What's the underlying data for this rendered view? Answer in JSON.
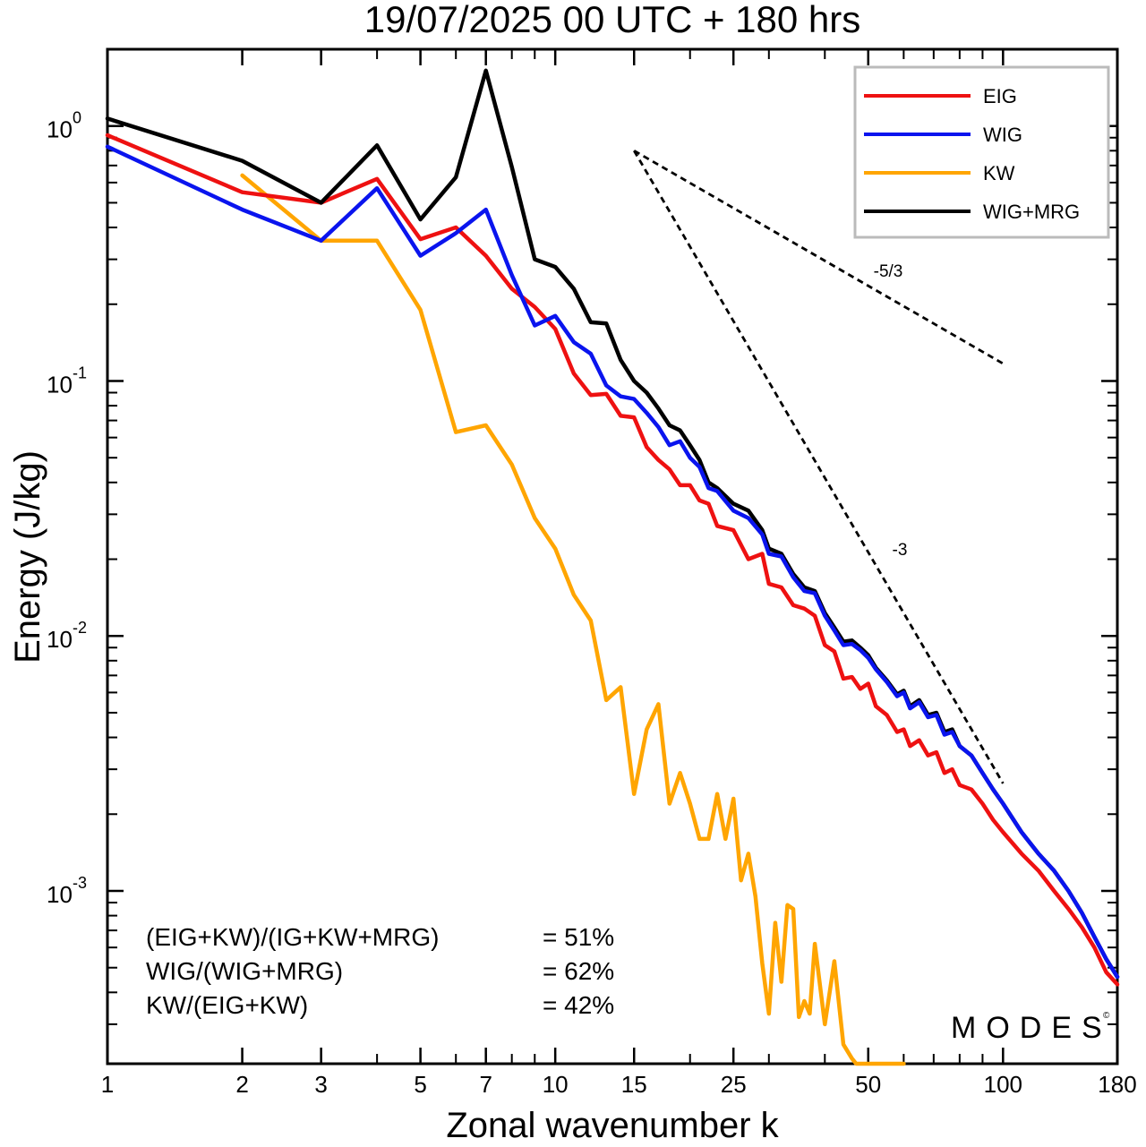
{
  "chart_data": {
    "type": "line",
    "title": "19/07/2025  00 UTC  + 180 hrs",
    "xlabel": "Zonal wavenumber k",
    "ylabel": "Energy (J/kg)",
    "xscale": "log",
    "yscale": "log",
    "xlim": [
      1,
      180
    ],
    "ylim": [
      0.00021,
      2.0
    ],
    "x_ticks": [
      1,
      2,
      3,
      5,
      7,
      10,
      15,
      25,
      50,
      100,
      180
    ],
    "x_tick_labels": [
      "1",
      "2",
      "3",
      "5",
      "7",
      "10",
      "15",
      "25",
      "50",
      "100",
      "180"
    ],
    "y_ticks": [
      {
        "value": 1,
        "base": "10",
        "exp": "0"
      },
      {
        "value": 0.1,
        "base": "10",
        "exp": "-1"
      },
      {
        "value": 0.01,
        "base": "10",
        "exp": "-2"
      },
      {
        "value": 0.001,
        "base": "10",
        "exp": "-3"
      }
    ],
    "legend_position": "top-right",
    "series": [
      {
        "name": "EIG",
        "color": "#ee1111",
        "points": [
          [
            1,
            0.92
          ],
          [
            2,
            0.55
          ],
          [
            3,
            0.5
          ],
          [
            4,
            0.62
          ],
          [
            5,
            0.36
          ],
          [
            6,
            0.4
          ],
          [
            7,
            0.31
          ],
          [
            8,
            0.23
          ],
          [
            9,
            0.195
          ],
          [
            10,
            0.16
          ],
          [
            11,
            0.107
          ],
          [
            12,
            0.088
          ],
          [
            13,
            0.089
          ],
          [
            14,
            0.073
          ],
          [
            15,
            0.072
          ],
          [
            16,
            0.055
          ],
          [
            17,
            0.049
          ],
          [
            18,
            0.045
          ],
          [
            19,
            0.039
          ],
          [
            20,
            0.039
          ],
          [
            21,
            0.034
          ],
          [
            22,
            0.033
          ],
          [
            23,
            0.027
          ],
          [
            25,
            0.026
          ],
          [
            27,
            0.02
          ],
          [
            29,
            0.021
          ],
          [
            30,
            0.016
          ],
          [
            32,
            0.0155
          ],
          [
            34,
            0.0132
          ],
          [
            36,
            0.0128
          ],
          [
            38,
            0.012
          ],
          [
            40,
            0.0092
          ],
          [
            42,
            0.0087
          ],
          [
            44,
            0.0068
          ],
          [
            46,
            0.0069
          ],
          [
            48,
            0.0062
          ],
          [
            50,
            0.0065
          ],
          [
            52,
            0.0053
          ],
          [
            55,
            0.0049
          ],
          [
            58,
            0.0042
          ],
          [
            60,
            0.0043
          ],
          [
            62,
            0.0037
          ],
          [
            65,
            0.0039
          ],
          [
            68,
            0.0034
          ],
          [
            71,
            0.0035
          ],
          [
            74,
            0.0029
          ],
          [
            77,
            0.003
          ],
          [
            80,
            0.0026
          ],
          [
            85,
            0.0025
          ],
          [
            90,
            0.0022
          ],
          [
            95,
            0.0019
          ],
          [
            100,
            0.0017
          ],
          [
            110,
            0.0014
          ],
          [
            120,
            0.0012
          ],
          [
            130,
            0.001
          ],
          [
            140,
            0.00085
          ],
          [
            150,
            0.00072
          ],
          [
            160,
            0.0006
          ],
          [
            170,
            0.00048
          ],
          [
            180,
            0.00043
          ]
        ]
      },
      {
        "name": "WIG",
        "color": "#0a14ee",
        "points": [
          [
            1,
            0.83
          ],
          [
            2,
            0.47
          ],
          [
            3,
            0.355
          ],
          [
            4,
            0.57
          ],
          [
            5,
            0.31
          ],
          [
            6,
            0.38
          ],
          [
            7,
            0.47
          ],
          [
            8,
            0.26
          ],
          [
            9,
            0.165
          ],
          [
            10,
            0.18
          ],
          [
            11,
            0.142
          ],
          [
            12,
            0.128
          ],
          [
            13,
            0.096
          ],
          [
            14,
            0.087
          ],
          [
            15,
            0.085
          ],
          [
            16,
            0.075
          ],
          [
            17,
            0.066
          ],
          [
            18,
            0.056
          ],
          [
            19,
            0.058
          ],
          [
            20,
            0.05
          ],
          [
            21,
            0.046
          ],
          [
            22,
            0.038
          ],
          [
            23,
            0.037
          ],
          [
            25,
            0.031
          ],
          [
            27,
            0.029
          ],
          [
            29,
            0.025
          ],
          [
            30,
            0.021
          ],
          [
            32,
            0.0205
          ],
          [
            34,
            0.017
          ],
          [
            36,
            0.015
          ],
          [
            38,
            0.0147
          ],
          [
            40,
            0.012
          ],
          [
            42,
            0.0105
          ],
          [
            44,
            0.0092
          ],
          [
            46,
            0.0093
          ],
          [
            48,
            0.0088
          ],
          [
            50,
            0.0082
          ],
          [
            52,
            0.0074
          ],
          [
            55,
            0.0066
          ],
          [
            58,
            0.0058
          ],
          [
            60,
            0.006
          ],
          [
            62,
            0.0052
          ],
          [
            65,
            0.0055
          ],
          [
            68,
            0.0048
          ],
          [
            71,
            0.0049
          ],
          [
            74,
            0.0041
          ],
          [
            77,
            0.0042
          ],
          [
            80,
            0.0037
          ],
          [
            85,
            0.0034
          ],
          [
            90,
            0.0029
          ],
          [
            95,
            0.0025
          ],
          [
            100,
            0.0022
          ],
          [
            110,
            0.0017
          ],
          [
            120,
            0.0014
          ],
          [
            130,
            0.0012
          ],
          [
            140,
            0.001
          ],
          [
            150,
            0.00082
          ],
          [
            160,
            0.00066
          ],
          [
            170,
            0.00054
          ],
          [
            180,
            0.00046
          ]
        ]
      },
      {
        "name": "KW",
        "color": "#ffa500",
        "points": [
          [
            2,
            0.64
          ],
          [
            3,
            0.355
          ],
          [
            4,
            0.355
          ],
          [
            5,
            0.19
          ],
          [
            6,
            0.063
          ],
          [
            7,
            0.067
          ],
          [
            8,
            0.047
          ],
          [
            9,
            0.029
          ],
          [
            10,
            0.022
          ],
          [
            11,
            0.0145
          ],
          [
            12,
            0.0115
          ],
          [
            13,
            0.0056
          ],
          [
            14,
            0.0063
          ],
          [
            15,
            0.0024
          ],
          [
            16,
            0.0043
          ],
          [
            17,
            0.0054
          ],
          [
            18,
            0.0022
          ],
          [
            19,
            0.0029
          ],
          [
            20,
            0.0022
          ],
          [
            21,
            0.0016
          ],
          [
            22,
            0.0016
          ],
          [
            23,
            0.0024
          ],
          [
            24,
            0.0016
          ],
          [
            25,
            0.0023
          ],
          [
            26,
            0.0011
          ],
          [
            27,
            0.0014
          ],
          [
            28,
            0.00095
          ],
          [
            29,
            0.00052
          ],
          [
            30,
            0.00033
          ],
          [
            31,
            0.00075
          ],
          [
            32,
            0.00044
          ],
          [
            33,
            0.00088
          ],
          [
            34,
            0.00085
          ],
          [
            35,
            0.00032
          ],
          [
            36,
            0.00037
          ],
          [
            37,
            0.00033
          ],
          [
            38,
            0.00062
          ],
          [
            40,
            0.0003
          ],
          [
            42,
            0.00053
          ],
          [
            44,
            0.00025
          ],
          [
            46,
            0.00022
          ],
          [
            47,
            0.00021
          ],
          [
            48,
            0.00021
          ],
          [
            50,
            0.00021
          ],
          [
            52,
            0.00021
          ],
          [
            55,
            0.00021
          ],
          [
            58,
            0.00021
          ],
          [
            60,
            0.00021
          ]
        ]
      },
      {
        "name": "WIG+MRG",
        "color": "#000000",
        "points": [
          [
            1,
            1.07
          ],
          [
            2,
            0.73
          ],
          [
            3,
            0.5
          ],
          [
            4,
            0.84
          ],
          [
            5,
            0.43
          ],
          [
            6,
            0.63
          ],
          [
            7,
            1.65
          ],
          [
            8,
            0.69
          ],
          [
            9,
            0.3
          ],
          [
            10,
            0.28
          ],
          [
            11,
            0.23
          ],
          [
            12,
            0.17
          ],
          [
            13,
            0.168
          ],
          [
            14,
            0.121
          ],
          [
            15,
            0.1
          ],
          [
            16,
            0.09
          ],
          [
            17,
            0.078
          ],
          [
            18,
            0.067
          ],
          [
            19,
            0.064
          ],
          [
            20,
            0.056
          ],
          [
            21,
            0.049
          ],
          [
            22,
            0.04
          ],
          [
            23,
            0.038
          ],
          [
            25,
            0.033
          ],
          [
            27,
            0.031
          ],
          [
            29,
            0.026
          ],
          [
            30,
            0.022
          ],
          [
            32,
            0.021
          ],
          [
            34,
            0.0175
          ],
          [
            36,
            0.0155
          ],
          [
            38,
            0.015
          ],
          [
            40,
            0.0123
          ],
          [
            42,
            0.0108
          ],
          [
            44,
            0.0095
          ],
          [
            46,
            0.0096
          ],
          [
            48,
            0.009
          ],
          [
            50,
            0.0084
          ],
          [
            52,
            0.0075
          ],
          [
            55,
            0.0067
          ],
          [
            58,
            0.0059
          ],
          [
            60,
            0.0061
          ],
          [
            62,
            0.0053
          ],
          [
            65,
            0.0056
          ],
          [
            68,
            0.0049
          ],
          [
            71,
            0.005
          ],
          [
            74,
            0.0042
          ],
          [
            77,
            0.0043
          ],
          [
            80,
            0.0037
          ],
          [
            85,
            0.0034
          ],
          [
            90,
            0.0029
          ],
          [
            95,
            0.0025
          ],
          [
            100,
            0.0022
          ],
          [
            110,
            0.0017
          ],
          [
            120,
            0.0014
          ],
          [
            130,
            0.0012
          ],
          [
            140,
            0.001
          ],
          [
            150,
            0.00082
          ],
          [
            160,
            0.00066
          ],
          [
            170,
            0.00054
          ],
          [
            180,
            0.00046
          ]
        ]
      }
    ],
    "reference_slopes": [
      {
        "label": "-5/3",
        "from": [
          15,
          0.8
        ],
        "to": [
          100,
          0.117
        ]
      },
      {
        "label": "-3",
        "from": [
          15,
          0.8
        ],
        "to": [
          100,
          0.00264
        ]
      }
    ],
    "annotations": [
      {
        "label": "(EIG+KW)/(IG+KW+MRG)",
        "value": "= 51%"
      },
      {
        "label": "WIG/(WIG+MRG)",
        "value": "= 62%"
      },
      {
        "label": "KW/(EIG+KW)",
        "value": "= 42%"
      }
    ],
    "watermark": "MODES",
    "watermark_mark": "©"
  }
}
